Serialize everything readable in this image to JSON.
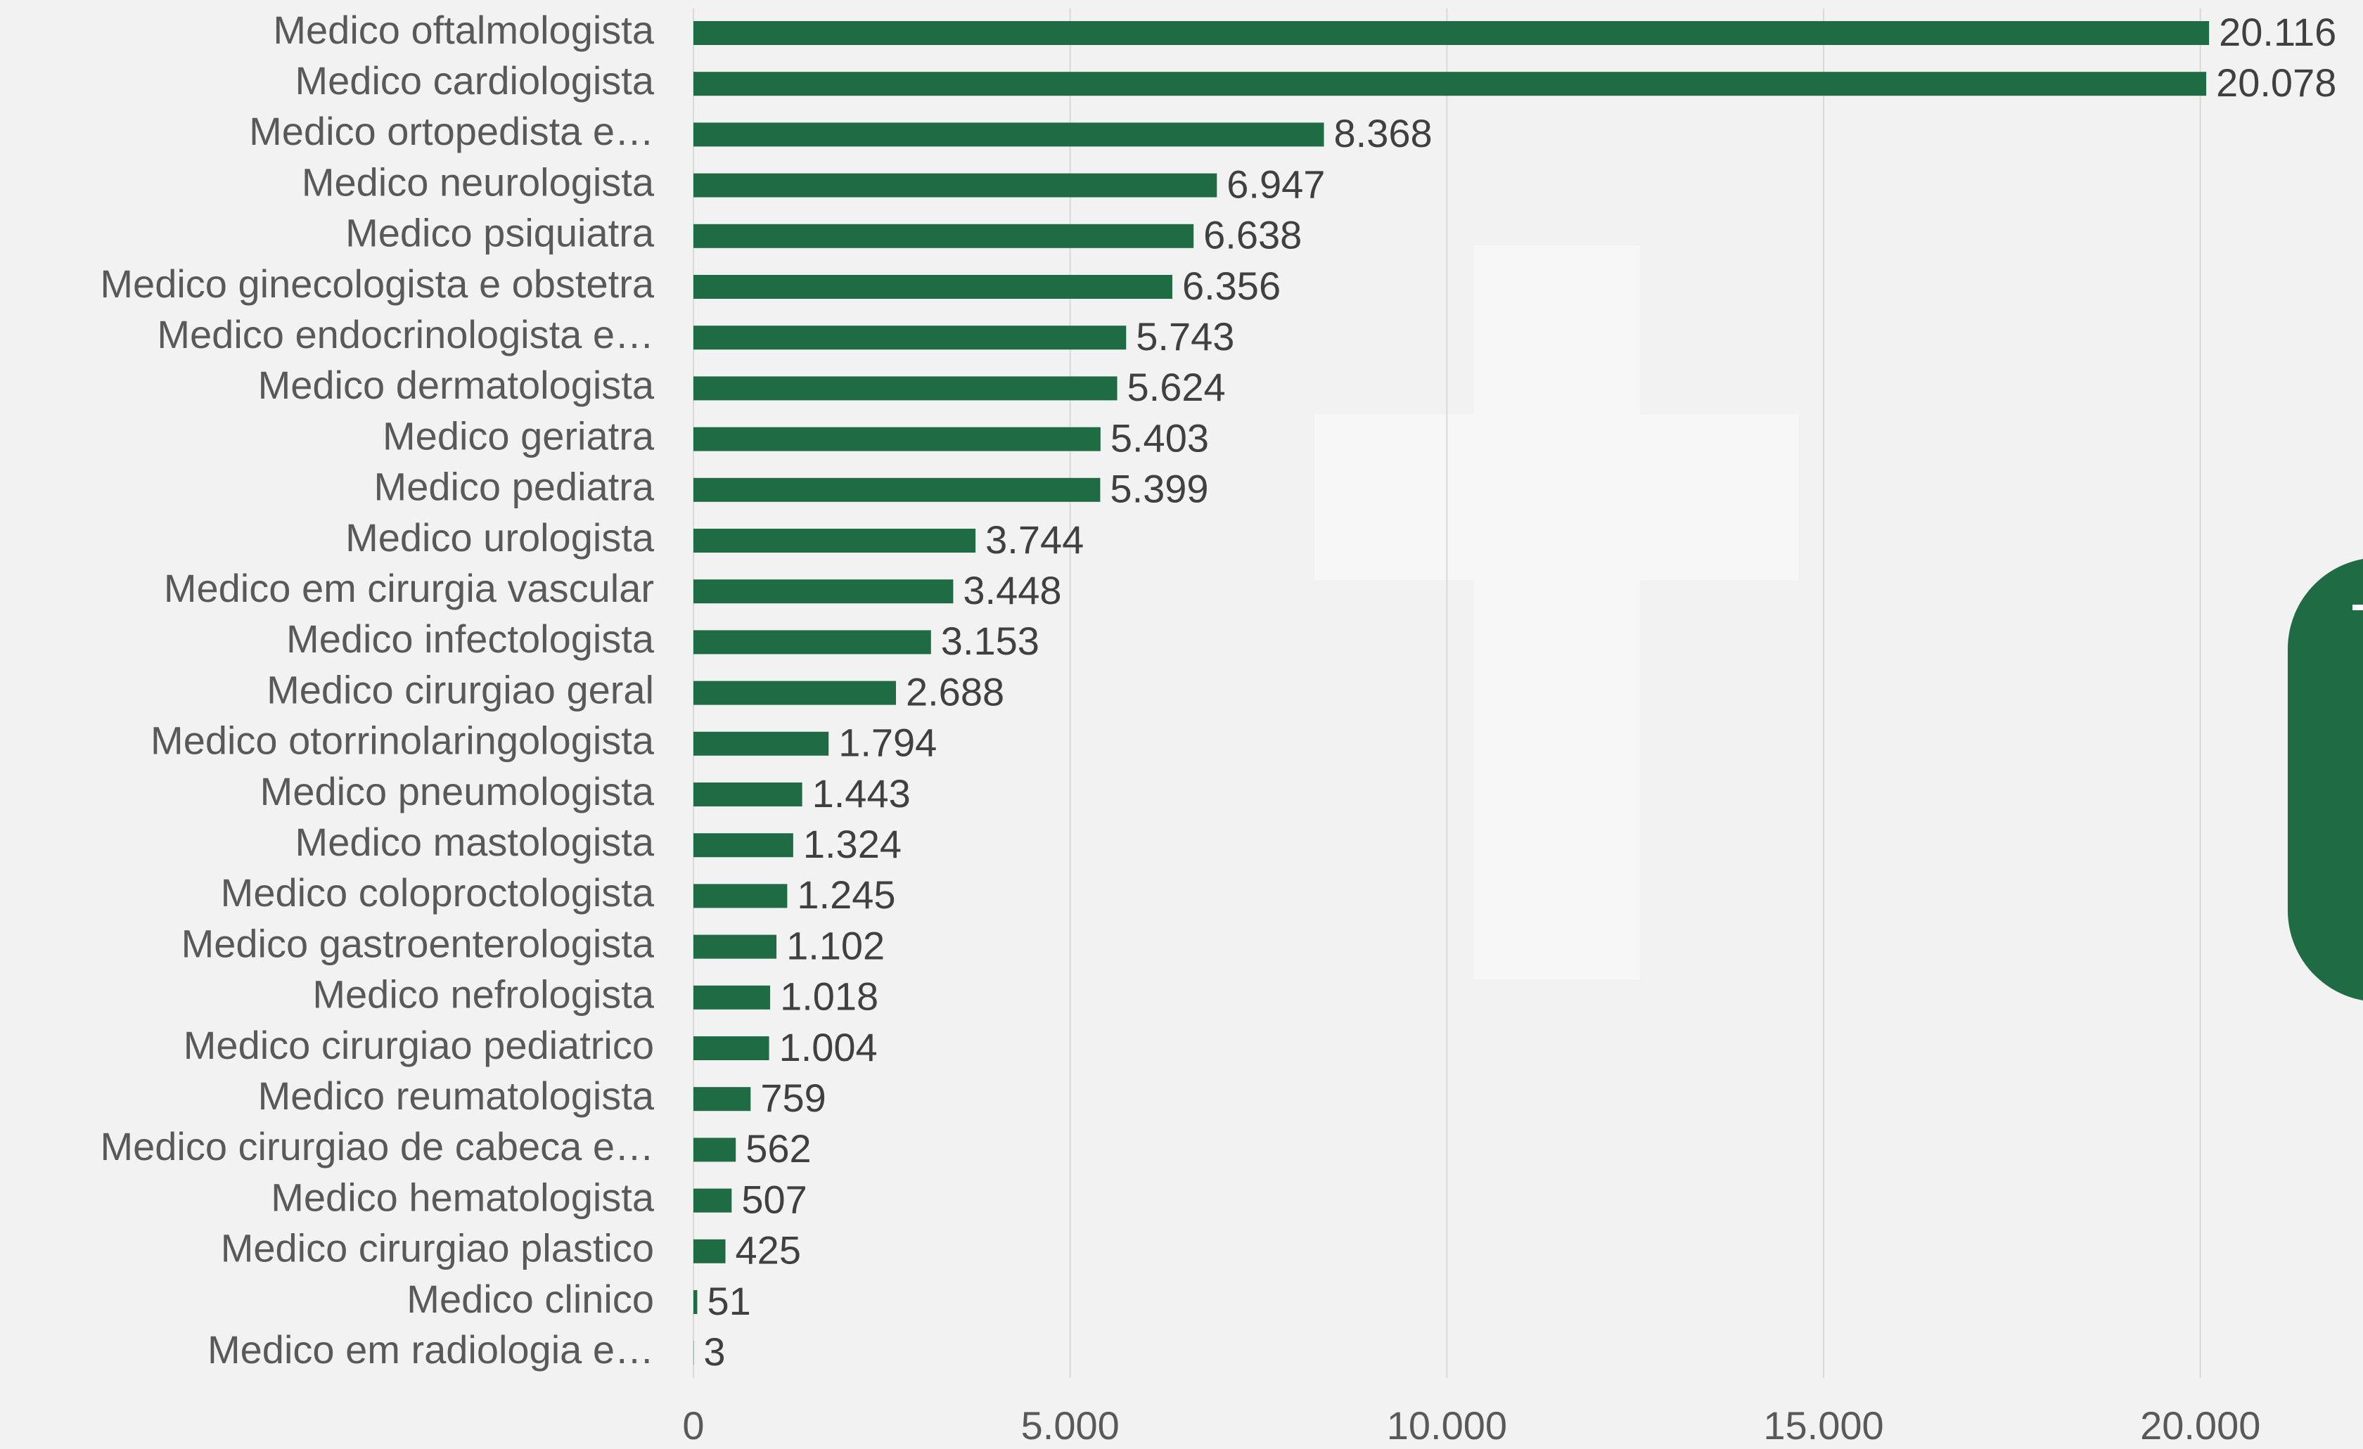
{
  "chart_data": {
    "type": "bar",
    "orientation": "horizontal",
    "color": "#1f6b43",
    "categories": [
      "Medico oftalmologista",
      "Medico cardiologista",
      "Medico ortopedista e…",
      "Medico neurologista",
      "Medico psiquiatra",
      "Medico ginecologista e obstetra",
      "Medico endocrinologista e…",
      "Medico dermatologista",
      "Medico geriatra",
      "Medico pediatra",
      "Medico urologista",
      "Medico em cirurgia vascular",
      "Medico infectologista",
      "Medico cirurgiao geral",
      "Medico otorrinolaringologista",
      "Medico pneumologista",
      "Medico mastologista",
      "Medico coloproctologista",
      "Medico gastroenterologista",
      "Medico nefrologista",
      "Medico cirurgiao pediatrico",
      "Medico reumatologista",
      "Medico cirurgiao de cabeca e…",
      "Medico hematologista",
      "Medico cirurgiao plastico",
      "Medico clinico",
      "Medico em radiologia e…"
    ],
    "values": [
      20116,
      20078,
      8368,
      6947,
      6638,
      6356,
      5743,
      5624,
      5403,
      5399,
      3744,
      3448,
      3153,
      2688,
      1794,
      1443,
      1324,
      1245,
      1102,
      1018,
      1004,
      759,
      562,
      507,
      425,
      51,
      3
    ],
    "value_labels": [
      "20.116",
      "20.078",
      "8.368",
      "6.947",
      "6.638",
      "6.356",
      "5.743",
      "5.624",
      "5.403",
      "5.399",
      "3.744",
      "3.448",
      "3.153",
      "2.688",
      "1.794",
      "1.443",
      "1.324",
      "1.245",
      "1.102",
      "1.018",
      "1.004",
      "759",
      "562",
      "507",
      "425",
      "51",
      "3"
    ],
    "xlim": [
      0,
      22000
    ],
    "xticks": [
      0,
      {
        "value": 5000,
        "label": "5.000"
      },
      {
        "value": 10000,
        "label": "10.000"
      },
      {
        "value": 15000,
        "label": "15.000"
      },
      {
        "value": 20000,
        "label": "20.000"
      }
    ],
    "grid": true
  }
}
